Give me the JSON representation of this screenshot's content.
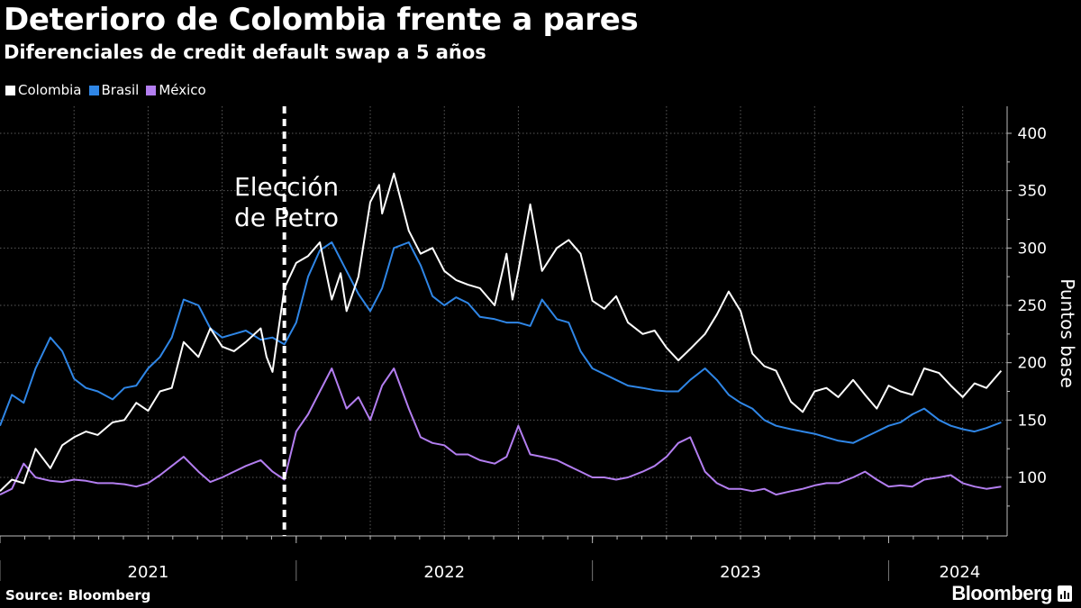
{
  "title": "Deterioro de Colombia frente a pares",
  "subtitle": "Diferenciales de credit default swap a 5 años",
  "source": "Source: Bloomberg",
  "brand": "Bloomberg",
  "chart_data": {
    "type": "line",
    "title": "Deterioro de Colombia frente a pares",
    "subtitle": "Diferenciales de credit default swap a 5 años",
    "ylabel": "Puntos base",
    "xlabel": "",
    "ylim": [
      50,
      420
    ],
    "yticks": [
      100,
      150,
      200,
      250,
      300,
      350,
      400
    ],
    "xlim": [
      2021.0,
      2024.4
    ],
    "year_ticks": [
      2021,
      2022,
      2023,
      2024
    ],
    "year_labels": [
      {
        "label": "2021",
        "at": 2021.5
      },
      {
        "label": "2022",
        "at": 2022.5
      },
      {
        "label": "2023",
        "at": 2023.5
      },
      {
        "label": "2024",
        "at": 2024.24
      }
    ],
    "grid": true,
    "legend_position": "top-left",
    "annotation": {
      "text_lines": [
        "Elección",
        "de Petro"
      ],
      "x": 2021.96
    },
    "series": [
      {
        "name": "Colombia",
        "color": "#ffffff",
        "x": [
          2021.0,
          2021.04,
          2021.08,
          2021.12,
          2021.17,
          2021.21,
          2021.25,
          2021.29,
          2021.33,
          2021.38,
          2021.42,
          2021.46,
          2021.5,
          2021.54,
          2021.58,
          2021.62,
          2021.67,
          2021.71,
          2021.75,
          2021.79,
          2021.83,
          2021.88,
          2021.9,
          2021.92,
          2021.96,
          2022.0,
          2022.04,
          2022.08,
          2022.12,
          2022.15,
          2022.17,
          2022.21,
          2022.25,
          2022.28,
          2022.29,
          2022.33,
          2022.38,
          2022.42,
          2022.46,
          2022.5,
          2022.54,
          2022.58,
          2022.62,
          2022.67,
          2022.71,
          2022.73,
          2022.75,
          2022.79,
          2022.83,
          2022.88,
          2022.92,
          2022.96,
          2023.0,
          2023.04,
          2023.08,
          2023.12,
          2023.17,
          2023.21,
          2023.25,
          2023.29,
          2023.33,
          2023.38,
          2023.42,
          2023.46,
          2023.5,
          2023.54,
          2023.58,
          2023.62,
          2023.67,
          2023.71,
          2023.75,
          2023.79,
          2023.83,
          2023.88,
          2023.92,
          2023.96,
          2024.0,
          2024.04,
          2024.08,
          2024.12,
          2024.17,
          2024.21,
          2024.25,
          2024.29,
          2024.33,
          2024.38
        ],
        "values": [
          88,
          98,
          95,
          125,
          108,
          128,
          135,
          140,
          137,
          148,
          150,
          165,
          158,
          175,
          178,
          218,
          205,
          230,
          214,
          210,
          218,
          230,
          205,
          192,
          265,
          287,
          293,
          305,
          255,
          278,
          245,
          275,
          340,
          355,
          330,
          365,
          315,
          295,
          300,
          280,
          272,
          268,
          265,
          250,
          295,
          255,
          280,
          338,
          280,
          300,
          307,
          295,
          254,
          247,
          258,
          235,
          225,
          228,
          213,
          202,
          212,
          225,
          242,
          262,
          245,
          208,
          197,
          193,
          166,
          157,
          175,
          178,
          170,
          185,
          172,
          160,
          180,
          175,
          172,
          195,
          191,
          180,
          170,
          182,
          178,
          193
        ]
      },
      {
        "name": "Brasil",
        "color": "#2f86e6",
        "x": [
          2021.0,
          2021.04,
          2021.08,
          2021.12,
          2021.17,
          2021.21,
          2021.25,
          2021.29,
          2021.33,
          2021.38,
          2021.42,
          2021.46,
          2021.5,
          2021.54,
          2021.58,
          2021.62,
          2021.67,
          2021.71,
          2021.75,
          2021.79,
          2021.83,
          2021.88,
          2021.92,
          2021.96,
          2022.0,
          2022.04,
          2022.08,
          2022.12,
          2022.17,
          2022.21,
          2022.25,
          2022.29,
          2022.33,
          2022.38,
          2022.42,
          2022.46,
          2022.5,
          2022.54,
          2022.58,
          2022.62,
          2022.67,
          2022.71,
          2022.75,
          2022.79,
          2022.83,
          2022.88,
          2022.92,
          2022.96,
          2023.0,
          2023.04,
          2023.08,
          2023.12,
          2023.17,
          2023.21,
          2023.25,
          2023.29,
          2023.33,
          2023.38,
          2023.42,
          2023.46,
          2023.5,
          2023.54,
          2023.58,
          2023.62,
          2023.67,
          2023.71,
          2023.75,
          2023.79,
          2023.83,
          2023.88,
          2023.92,
          2023.96,
          2024.0,
          2024.04,
          2024.08,
          2024.12,
          2024.17,
          2024.21,
          2024.25,
          2024.29,
          2024.33,
          2024.38
        ],
        "values": [
          145,
          172,
          165,
          195,
          222,
          210,
          186,
          178,
          175,
          168,
          178,
          180,
          195,
          205,
          222,
          255,
          250,
          230,
          222,
          225,
          228,
          220,
          222,
          216,
          235,
          275,
          298,
          305,
          280,
          260,
          245,
          265,
          300,
          305,
          285,
          258,
          250,
          257,
          252,
          240,
          238,
          235,
          235,
          232,
          255,
          238,
          235,
          210,
          195,
          190,
          185,
          180,
          178,
          176,
          175,
          175,
          185,
          195,
          185,
          172,
          165,
          160,
          150,
          145,
          142,
          140,
          138,
          135,
          132,
          130,
          135,
          140,
          145,
          148,
          155,
          160,
          150,
          145,
          142,
          140,
          143,
          148
        ]
      },
      {
        "name": "México",
        "color": "#b37ef0",
        "x": [
          2021.0,
          2021.04,
          2021.08,
          2021.12,
          2021.17,
          2021.21,
          2021.25,
          2021.29,
          2021.33,
          2021.38,
          2021.42,
          2021.46,
          2021.5,
          2021.54,
          2021.58,
          2021.62,
          2021.67,
          2021.71,
          2021.75,
          2021.79,
          2021.83,
          2021.88,
          2021.92,
          2021.96,
          2022.0,
          2022.04,
          2022.08,
          2022.12,
          2022.17,
          2022.21,
          2022.25,
          2022.29,
          2022.33,
          2022.38,
          2022.42,
          2022.46,
          2022.5,
          2022.54,
          2022.58,
          2022.62,
          2022.67,
          2022.71,
          2022.75,
          2022.79,
          2022.83,
          2022.88,
          2022.92,
          2022.96,
          2023.0,
          2023.04,
          2023.08,
          2023.12,
          2023.17,
          2023.21,
          2023.25,
          2023.29,
          2023.33,
          2023.38,
          2023.42,
          2023.46,
          2023.5,
          2023.54,
          2023.58,
          2023.62,
          2023.67,
          2023.71,
          2023.75,
          2023.79,
          2023.83,
          2023.88,
          2023.92,
          2023.96,
          2024.0,
          2024.04,
          2024.08,
          2024.12,
          2024.17,
          2024.21,
          2024.25,
          2024.29,
          2024.33,
          2024.38
        ],
        "values": [
          85,
          90,
          112,
          100,
          97,
          96,
          98,
          97,
          95,
          95,
          94,
          92,
          95,
          102,
          110,
          118,
          105,
          96,
          100,
          105,
          110,
          115,
          105,
          98,
          140,
          155,
          175,
          195,
          160,
          170,
          150,
          180,
          195,
          160,
          135,
          130,
          128,
          120,
          120,
          115,
          112,
          118,
          145,
          120,
          118,
          115,
          110,
          105,
          100,
          100,
          98,
          100,
          105,
          110,
          118,
          130,
          135,
          105,
          95,
          90,
          90,
          88,
          90,
          85,
          88,
          90,
          93,
          95,
          95,
          100,
          105,
          98,
          92,
          93,
          92,
          98,
          100,
          102,
          95,
          92,
          90,
          92
        ]
      }
    ]
  }
}
